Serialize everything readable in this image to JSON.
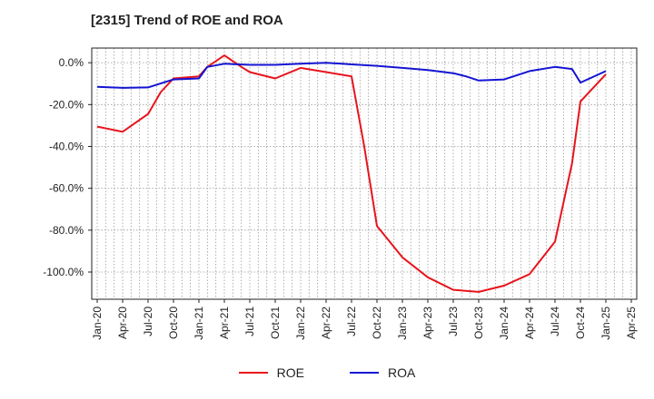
{
  "chart_data": {
    "type": "line",
    "title": "[2315]  Trend of ROE and ROA",
    "xlabel": "",
    "ylabel": "",
    "x_ticks": [
      "Jan-20",
      "Apr-20",
      "Jul-20",
      "Oct-20",
      "Jan-21",
      "Apr-21",
      "Jul-21",
      "Oct-21",
      "Jan-22",
      "Apr-22",
      "Jul-22",
      "Oct-22",
      "Jan-23",
      "Apr-23",
      "Jul-23",
      "Oct-23",
      "Jan-24",
      "Apr-24",
      "Jul-24",
      "Oct-24",
      "Jan-25",
      "Apr-25"
    ],
    "y_ticks": [
      0,
      -20,
      -40,
      -60,
      -80,
      -100
    ],
    "y_tick_labels": [
      "0.0%",
      "-20.0%",
      "-40.0%",
      "-60.0%",
      "-80.0%",
      "-100.0%"
    ],
    "ylim": [
      -113,
      7
    ],
    "grid": true,
    "legend_position": "bottom",
    "categories": [
      "Jan-20",
      "Apr-20",
      "Jul-20",
      "Oct-20",
      "Jan-21",
      "Feb-21",
      "Apr-21",
      "Jun-21",
      "Jul-21",
      "Oct-21",
      "Jan-22",
      "Apr-22",
      "Jul-22",
      "Oct-22",
      "Jan-23",
      "Apr-23",
      "Jul-23",
      "Oct-23",
      "Jan-24",
      "Apr-24",
      "Jul-24",
      "Oct-24",
      "Jan-25"
    ],
    "x_index": [
      0,
      1,
      2,
      3,
      4,
      4.33,
      5,
      5.67,
      6,
      7,
      8,
      9,
      10,
      11,
      12,
      13,
      14,
      15,
      16,
      17,
      18,
      19,
      20
    ],
    "series": [
      {
        "name": "ROE",
        "color": "#e8141c",
        "x": [
          0,
          1,
          2,
          2.5,
          3,
          4,
          4.33,
          5,
          5.67,
          6,
          7,
          8,
          9,
          10,
          10.5,
          11,
          12,
          13,
          14,
          15,
          16,
          17,
          18,
          18.67,
          19,
          20
        ],
        "values": [
          -30.5,
          -33.0,
          -24.5,
          -14.0,
          -7.5,
          -6.5,
          -2.0,
          3.5,
          -2.0,
          -4.5,
          -7.5,
          -2.5,
          -4.5,
          -6.5,
          -40.0,
          -78.0,
          -93.0,
          -102.5,
          -108.5,
          -109.5,
          -106.5,
          -101.0,
          -85.5,
          -48.0,
          -18.5,
          -5.5
        ]
      },
      {
        "name": "ROA",
        "color": "#1414d2",
        "x": [
          0,
          1,
          2,
          3,
          4,
          4.33,
          5,
          6,
          7,
          8,
          9,
          10,
          11,
          12,
          13,
          14,
          14.5,
          15,
          16,
          17,
          18,
          18.67,
          19,
          20
        ],
        "values": [
          -11.5,
          -12.0,
          -11.8,
          -8.0,
          -7.5,
          -2.0,
          -0.5,
          -1.0,
          -1.0,
          -0.5,
          0.0,
          -0.8,
          -1.5,
          -2.5,
          -3.5,
          -5.0,
          -6.5,
          -8.5,
          -8.0,
          -4.0,
          -2.0,
          -3.0,
          -9.5,
          -4.0
        ]
      }
    ]
  }
}
